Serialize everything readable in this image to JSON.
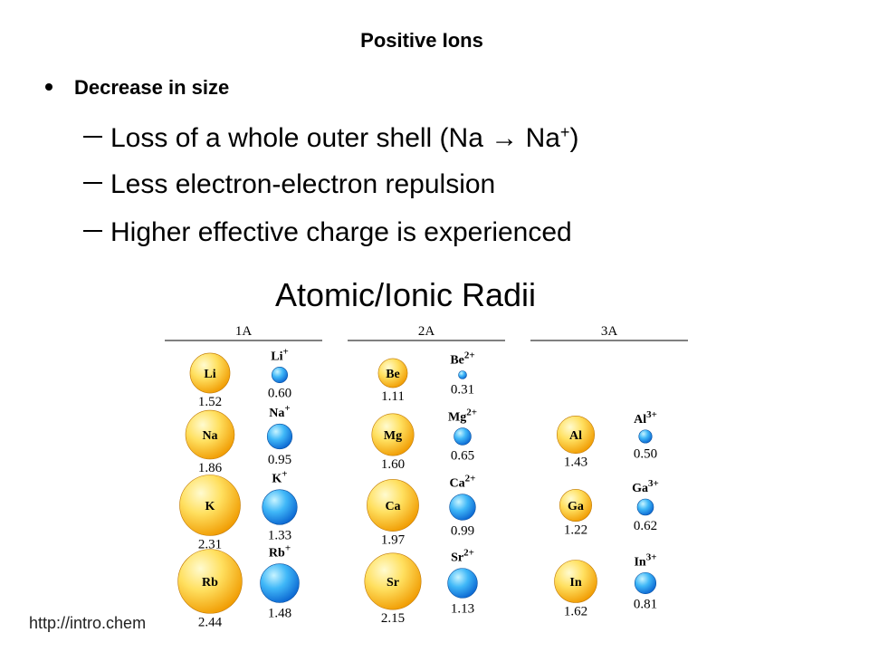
{
  "header": {
    "title": "Positive Ions"
  },
  "bullets": [
    {
      "text": "Decrease in size",
      "items": [
        [
          {
            "text": "Loss of a whole outer shell (Na "
          },
          {
            "text": "→"
          },
          {
            "text": " Na"
          },
          {
            "text": "+",
            "sup": true
          },
          {
            "text": ")"
          }
        ],
        [
          {
            "text": "Less electron-electron repulsion"
          }
        ],
        [
          {
            "text": "Higher effective charge is experienced"
          }
        ]
      ]
    }
  ],
  "figure": {
    "title": "Atomic/Ionic Radii",
    "groups": [
      {
        "label": "1A",
        "elements": [
          {
            "atom": "Li",
            "atom_radius": {
              "value": 1.52,
              "label": "1.52"
            },
            "ion": "Li",
            "charge": "+",
            "ion_radius": {
              "value": 0.6,
              "label": "0.60"
            }
          },
          {
            "atom": "Na",
            "atom_radius": {
              "value": 1.86,
              "label": "1.86"
            },
            "ion": "Na",
            "charge": "+",
            "ion_radius": {
              "value": 0.95,
              "label": "0.95"
            }
          },
          {
            "atom": "K",
            "atom_radius": {
              "value": 2.31,
              "label": "2.31"
            },
            "ion": "K",
            "charge": "+",
            "ion_radius": {
              "value": 1.33,
              "label": "1.33"
            }
          },
          {
            "atom": "Rb",
            "atom_radius": {
              "value": 2.44,
              "label": "2.44"
            },
            "ion": "Rb",
            "charge": "+",
            "ion_radius": {
              "value": 1.48,
              "label": "1.48"
            }
          }
        ]
      },
      {
        "label": "2A",
        "elements": [
          {
            "atom": "Be",
            "atom_radius": {
              "value": 1.11,
              "label": "1.11"
            },
            "ion": "Be",
            "charge": "2+",
            "ion_radius": {
              "value": 0.31,
              "label": "0.31"
            }
          },
          {
            "atom": "Mg",
            "atom_radius": {
              "value": 1.6,
              "label": "1.60"
            },
            "ion": "Mg",
            "charge": "2+",
            "ion_radius": {
              "value": 0.65,
              "label": "0.65"
            }
          },
          {
            "atom": "Ca",
            "atom_radius": {
              "value": 1.97,
              "label": "1.97"
            },
            "ion": "Ca",
            "charge": "2+",
            "ion_radius": {
              "value": 0.99,
              "label": "0.99"
            }
          },
          {
            "atom": "Sr",
            "atom_radius": {
              "value": 2.15,
              "label": "2.15"
            },
            "ion": "Sr",
            "charge": "2+",
            "ion_radius": {
              "value": 1.13,
              "label": "1.13"
            }
          }
        ]
      },
      {
        "label": "3A",
        "elements": [
          {
            "atom": "Al",
            "atom_radius": {
              "value": 1.43,
              "label": "1.43"
            },
            "ion": "Al",
            "charge": "3+",
            "ion_radius": {
              "value": 0.5,
              "label": "0.50"
            }
          },
          {
            "atom": "Ga",
            "atom_radius": {
              "value": 1.22,
              "label": "1.22"
            },
            "ion": "Ga",
            "charge": "3+",
            "ion_radius": {
              "value": 0.62,
              "label": "0.62"
            }
          },
          {
            "atom": "In",
            "atom_radius": {
              "value": 1.62,
              "label": "1.62"
            },
            "ion": "In",
            "charge": "3+",
            "ion_radius": {
              "value": 0.81,
              "label": "0.81"
            }
          }
        ]
      }
    ]
  },
  "footer": {
    "source": "http://intro.chem"
  }
}
